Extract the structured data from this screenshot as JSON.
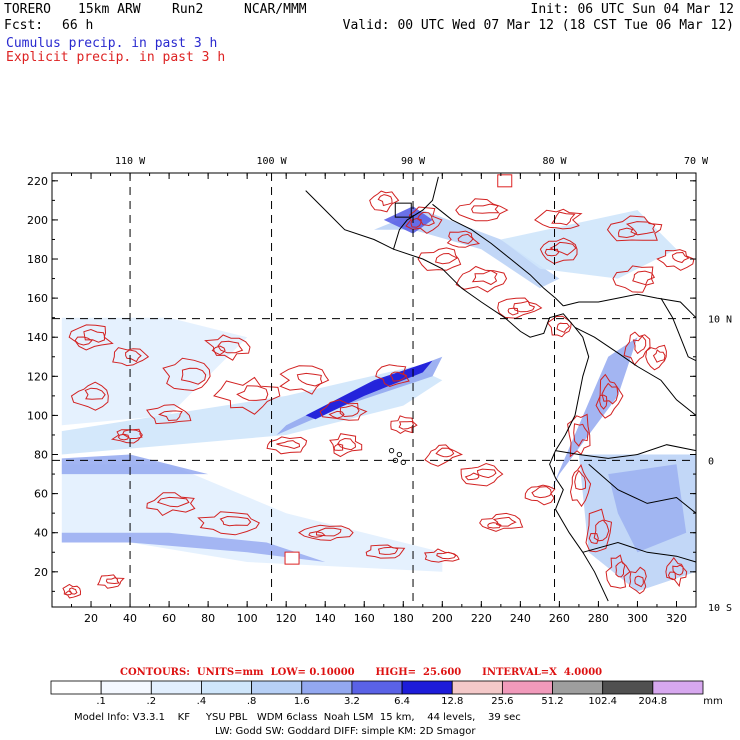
{
  "header": {
    "model": "TORERO",
    "resolution": "15km ARW",
    "run": "Run2",
    "org": "NCAR/MMM",
    "init": "Init: 06 UTC Sun 04 Mar 12",
    "fcst_label": "Fcst:",
    "fcst_value": "66 h",
    "valid": "Valid: 00 UTC Wed 07 Mar 12 (18 CST Tue 06 Mar 12)",
    "legend_cumulus": "Cumulus precip. in past 3 h",
    "legend_explicit": "Explicit precip. in past 3 h"
  },
  "colors": {
    "cumulus": "#2a2acf",
    "explicit": "#d22222",
    "coast": "#000000"
  },
  "axes": {
    "top_lon": [
      "110 W",
      "100 W",
      "90 W",
      "80 W",
      "70 W"
    ],
    "right_lat": [
      "10 N",
      "0",
      "10 S"
    ],
    "left_ticks": [
      "220",
      "200",
      "180",
      "160",
      "140",
      "120",
      "100",
      "80",
      "60",
      "40",
      "20"
    ],
    "bottom_ticks": [
      "20",
      "40",
      "60",
      "80",
      "100",
      "120",
      "140",
      "160",
      "180",
      "200",
      "220",
      "240",
      "260",
      "280",
      "300",
      "320"
    ]
  },
  "contours": {
    "caption": "CONTOURS:  UNITS=mm  LOW= 0.10000      HIGH=  25.600      INTERVAL=X  4.0000"
  },
  "colorbar": {
    "unit": "mm",
    "labels": [
      ".1",
      ".2",
      ".4",
      ".8",
      "1.6",
      "3.2",
      "6.4",
      "12.8",
      "25.6",
      "51.2",
      "102.4",
      "204.8"
    ],
    "colors": [
      "#ffffff",
      "#f4f8ff",
      "#e2effe",
      "#cfe6fb",
      "#b7d0f6",
      "#93a8f0",
      "#5a62e6",
      "#1d1cd9",
      "#f4c9c9",
      "#f19abb",
      "#9e9e9e",
      "#505050",
      "#d7a8ef"
    ]
  },
  "footer": {
    "line1": "Model Info: V3.3.1    KF     YSU PBL   WDM 6class  Noah LSM  15 km,    44 levels,    39 sec",
    "line2": "LW: Godd SW: Goddard DIFF: simple KM: 2D Smagor"
  }
}
